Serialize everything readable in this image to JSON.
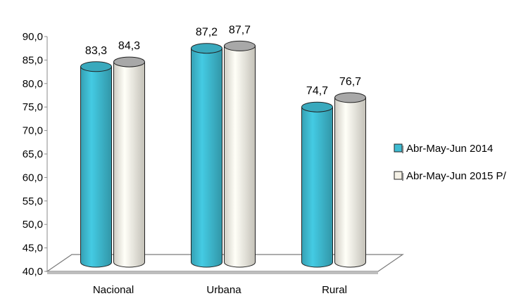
{
  "chart_data": {
    "type": "bar",
    "style": "3d-cylinder",
    "categories": [
      "Nacional",
      "Urbana",
      "Rural"
    ],
    "series": [
      {
        "name": "Abr-May-Jun 2014",
        "values": [
          83.3,
          87.2,
          74.7
        ],
        "color": "#3fbcd2"
      },
      {
        "name": "Abr-May-Jun 2015 P/",
        "values": [
          84.3,
          87.7,
          76.7
        ],
        "color": "#f5f1e6"
      }
    ],
    "data_labels": [
      [
        "83,3",
        "87,2",
        "74,7"
      ],
      [
        "84,3",
        "87,7",
        "76,7"
      ]
    ],
    "yticks": [
      "40,0",
      "45,0",
      "50,0",
      "55,0",
      "60,0",
      "65,0",
      "70,0",
      "75,0",
      "80,0",
      "85,0",
      "90,0"
    ],
    "ylim": [
      40,
      90
    ],
    "grid": false,
    "legend_position": "right"
  }
}
